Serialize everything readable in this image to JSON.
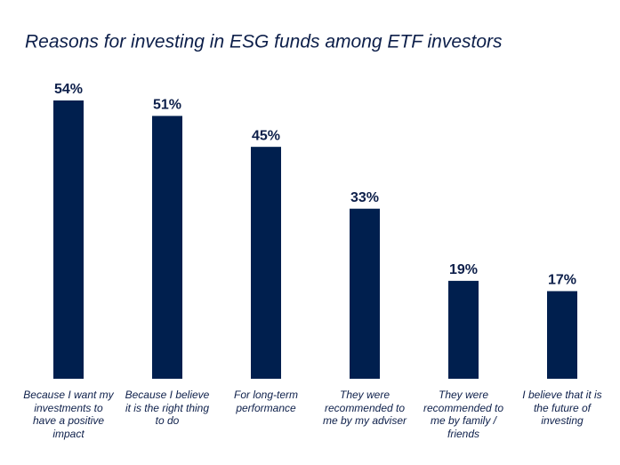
{
  "chart_data": {
    "type": "bar",
    "title": "Reasons for investing in ESG funds among ETF investors",
    "categories": [
      "Because I want my investments to have a positive impact",
      "Because I believe it is the right thing to do",
      "For long-term performance",
      "They were recommended to me by my adviser",
      "They were recommended to me by family / friends",
      "I believe that it is the future of investing"
    ],
    "values": [
      54,
      51,
      45,
      33,
      19,
      17
    ],
    "value_labels": [
      "54%",
      "51%",
      "45%",
      "33%",
      "19%",
      "17%"
    ],
    "color": "#001f4e"
  }
}
